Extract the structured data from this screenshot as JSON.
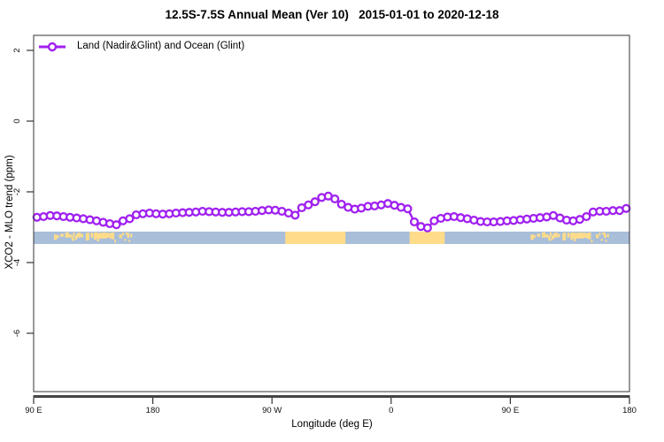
{
  "chart_data": {
    "type": "line",
    "title": "12.5S-7.5S Annual Mean (Ver 10)   2015-01-01 to 2020-12-18",
    "xlabel": "Longitude (deg E)",
    "ylabel": "XCO2 - MLO trend (ppm)",
    "legend_position": "top-left",
    "grid": false,
    "xlim_deg": [
      90,
      540
    ],
    "ylim": [
      -7.6,
      2.4
    ],
    "x_ticks": [
      {
        "lon": 90,
        "label": "90 E"
      },
      {
        "lon": 180,
        "label": "180"
      },
      {
        "lon": 270,
        "label": "90 W"
      },
      {
        "lon": 360,
        "label": "0"
      },
      {
        "lon": 450,
        "label": "90 E"
      },
      {
        "lon": 540,
        "label": "180"
      }
    ],
    "y_ticks": [
      {
        "v": 2,
        "label": "2"
      },
      {
        "v": 0,
        "label": "0"
      },
      {
        "v": -2,
        "label": "-2"
      },
      {
        "v": -4,
        "label": "-4"
      },
      {
        "v": -6,
        "label": "-6"
      }
    ],
    "series": [
      {
        "name": "Land (Nadir&Glint) and Ocean (Glint)",
        "color": "#A020F0",
        "marker": "open-circle",
        "x_start": 92.5,
        "x_step": 5,
        "values": [
          -2.72,
          -2.7,
          -2.67,
          -2.68,
          -2.7,
          -2.72,
          -2.74,
          -2.76,
          -2.79,
          -2.82,
          -2.86,
          -2.9,
          -2.93,
          -2.82,
          -2.76,
          -2.65,
          -2.62,
          -2.6,
          -2.62,
          -2.63,
          -2.62,
          -2.6,
          -2.59,
          -2.58,
          -2.57,
          -2.55,
          -2.56,
          -2.57,
          -2.58,
          -2.58,
          -2.57,
          -2.56,
          -2.56,
          -2.55,
          -2.53,
          -2.51,
          -2.52,
          -2.55,
          -2.6,
          -2.66,
          -2.45,
          -2.37,
          -2.28,
          -2.16,
          -2.12,
          -2.2,
          -2.35,
          -2.44,
          -2.49,
          -2.46,
          -2.41,
          -2.4,
          -2.37,
          -2.33,
          -2.38,
          -2.44,
          -2.48,
          -2.85,
          -2.98,
          -3.02,
          -2.82,
          -2.75,
          -2.71,
          -2.7,
          -2.73,
          -2.76,
          -2.8,
          -2.84,
          -2.85,
          -2.85,
          -2.84,
          -2.82,
          -2.81,
          -2.79,
          -2.77,
          -2.75,
          -2.73,
          -2.71,
          -2.67,
          -2.74,
          -2.8,
          -2.82,
          -2.78,
          -2.7,
          -2.57,
          -2.55,
          -2.55,
          -2.53,
          -2.53,
          -2.47
        ]
      }
    ],
    "map_band": {
      "ocean_color": "#A9BED9",
      "land_color": "#FFDC8A",
      "segments": [
        {
          "name": "maritime-continent",
          "type": "speckle",
          "lon_from": 103,
          "lon_to": 167
        },
        {
          "name": "south-america",
          "type": "solid",
          "lon_from": 280,
          "lon_to": 325.5
        },
        {
          "name": "africa",
          "type": "solid",
          "lon_from": 14,
          "lon_to": 40.5
        }
      ]
    },
    "colors": {
      "accent": "#A020F0",
      "axis_line": "#444444",
      "box": "#333333",
      "text": "#111111"
    }
  }
}
